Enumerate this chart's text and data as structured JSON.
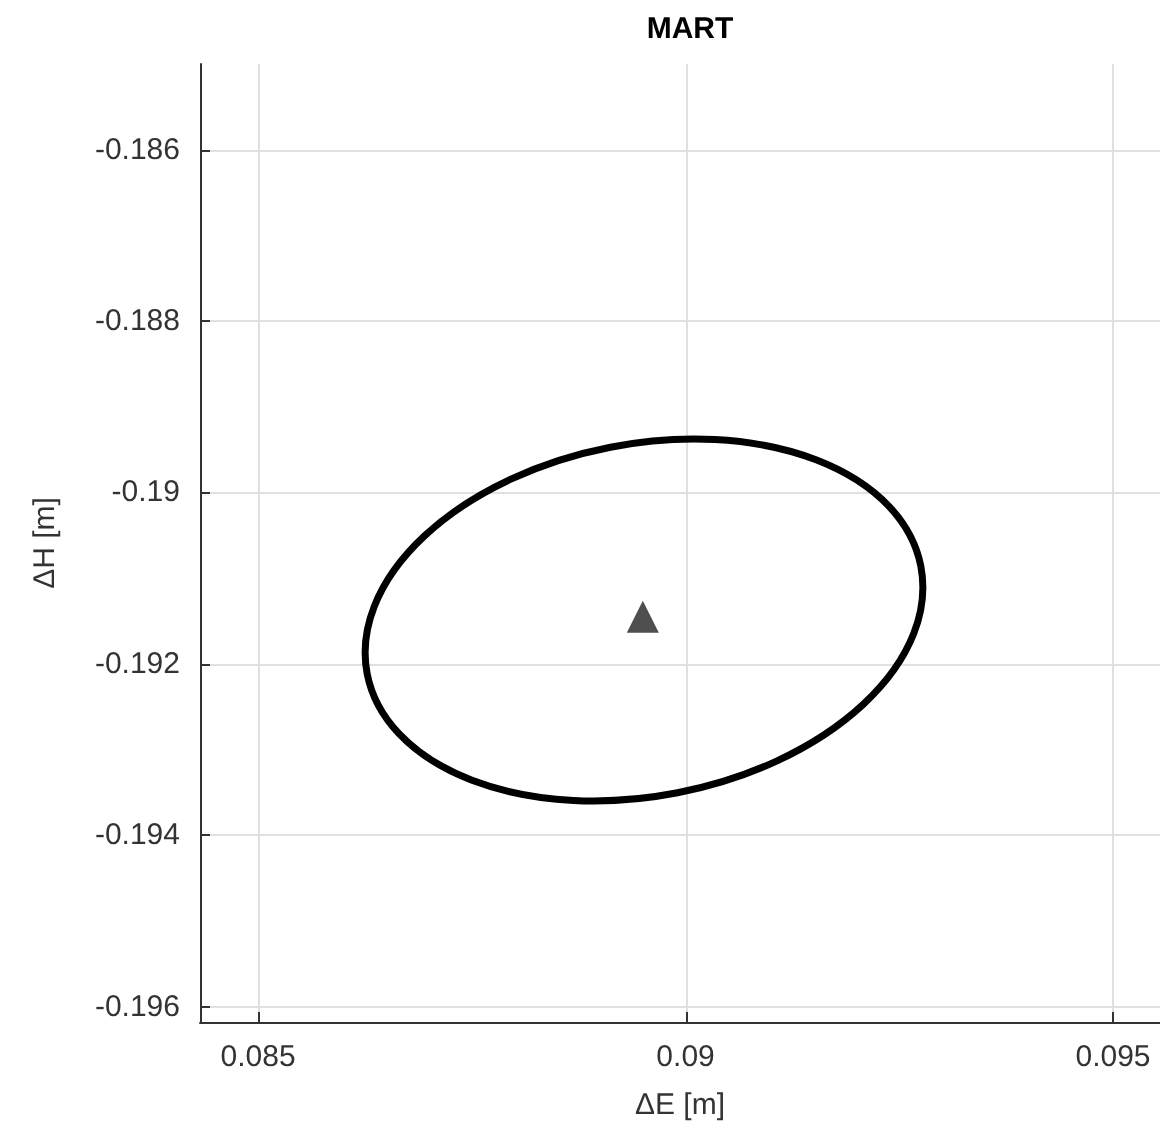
{
  "chart_data": {
    "type": "scatter",
    "title": "MART",
    "xlabel": "ΔE [m]",
    "ylabel": "ΔH [m]",
    "xlim": [
      0.08432,
      0.09555
    ],
    "xticks": [
      0.085,
      0.09,
      0.095
    ],
    "ylim": [
      -0.19618,
      -0.185
    ],
    "yticks": [
      -0.196,
      -0.194,
      -0.192,
      -0.19,
      -0.188,
      -0.186
    ],
    "grid": true,
    "series": [
      {
        "color": "#222222",
        "marker": "triangle",
        "x": [
          0.0895
        ],
        "values": [
          -0.19145
        ]
      }
    ]
  }
}
